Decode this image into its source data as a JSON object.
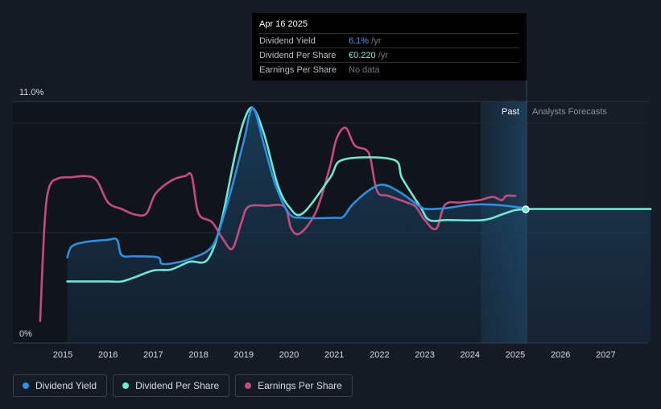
{
  "tooltip": {
    "date": "Apr 16 2025",
    "rows": [
      {
        "label": "Dividend Yield",
        "value": "6.1%",
        "unit": " /yr"
      },
      {
        "label": "Dividend Per Share",
        "value": "€0.220",
        "unit": " /yr"
      },
      {
        "label": "Earnings Per Share",
        "value": "No data",
        "unit": ""
      }
    ]
  },
  "regions": {
    "past_label": "Past",
    "forecast_label": "Analysts Forecasts"
  },
  "legend": [
    {
      "label": "Dividend Yield",
      "color": "#2f8ee0"
    },
    {
      "label": "Dividend Per Share",
      "color": "#6de8d4"
    },
    {
      "label": "Earnings Per Share",
      "color": "#c94a7f"
    }
  ],
  "chart_data": {
    "type": "line",
    "ylim": [
      0,
      11.0
    ],
    "y_tick_labels": [
      "11.0%",
      "0%"
    ],
    "x_tick_labels": [
      "2015",
      "2016",
      "2017",
      "2018",
      "2019",
      "2020",
      "2021",
      "2022",
      "2023",
      "2024",
      "2025",
      "2026",
      "2027"
    ],
    "past_end": 2025.3,
    "forecast_start": 2024.3,
    "grid": true,
    "series": [
      {
        "name": "Dividend Yield",
        "color": "#2f8ee0",
        "points": [
          [
            2015.1,
            3.9
          ],
          [
            2015.2,
            4.4
          ],
          [
            2015.5,
            4.6
          ],
          [
            2016.0,
            4.7
          ],
          [
            2016.2,
            4.7
          ],
          [
            2016.3,
            4.0
          ],
          [
            2016.6,
            3.95
          ],
          [
            2017.1,
            3.9
          ],
          [
            2017.2,
            3.6
          ],
          [
            2017.6,
            3.7
          ],
          [
            2017.9,
            3.9
          ],
          [
            2018.2,
            4.2
          ],
          [
            2018.4,
            4.8
          ],
          [
            2018.7,
            6.8
          ],
          [
            2019.0,
            9.2
          ],
          [
            2019.2,
            10.7
          ],
          [
            2019.45,
            9.0
          ],
          [
            2019.7,
            7.2
          ],
          [
            2020.0,
            5.9
          ],
          [
            2020.3,
            5.7
          ],
          [
            2021.0,
            5.7
          ],
          [
            2021.2,
            5.75
          ],
          [
            2021.4,
            6.3
          ],
          [
            2021.8,
            7.0
          ],
          [
            2022.1,
            7.2
          ],
          [
            2022.5,
            6.8
          ],
          [
            2022.9,
            6.2
          ],
          [
            2023.1,
            6.1
          ],
          [
            2023.5,
            6.15
          ],
          [
            2024.0,
            6.3
          ],
          [
            2024.5,
            6.3
          ],
          [
            2025.0,
            6.2
          ],
          [
            2025.3,
            6.1
          ]
        ]
      },
      {
        "name": "Dividend Per Share",
        "color": "#6de8d4",
        "points": [
          [
            2015.1,
            2.8
          ],
          [
            2016.0,
            2.8
          ],
          [
            2016.3,
            2.8
          ],
          [
            2016.6,
            3.0
          ],
          [
            2017.0,
            3.3
          ],
          [
            2017.4,
            3.35
          ],
          [
            2017.8,
            3.7
          ],
          [
            2018.2,
            3.8
          ],
          [
            2018.5,
            5.5
          ],
          [
            2018.8,
            8.5
          ],
          [
            2019.0,
            10.1
          ],
          [
            2019.2,
            10.7
          ],
          [
            2019.45,
            9.5
          ],
          [
            2019.75,
            7.2
          ],
          [
            2020.0,
            6.2
          ],
          [
            2020.3,
            5.9
          ],
          [
            2020.9,
            7.5
          ],
          [
            2021.2,
            8.35
          ],
          [
            2022.3,
            8.35
          ],
          [
            2022.5,
            7.5
          ],
          [
            2022.9,
            6.2
          ],
          [
            2023.1,
            5.6
          ],
          [
            2023.5,
            5.6
          ],
          [
            2024.3,
            5.6
          ],
          [
            2024.7,
            5.85
          ],
          [
            2025.0,
            6.05
          ],
          [
            2025.3,
            6.1
          ],
          [
            2026.0,
            6.1
          ],
          [
            2027.0,
            6.1
          ],
          [
            2027.99,
            6.1
          ]
        ]
      },
      {
        "name": "Earnings Per Share",
        "color": "#c94a7f",
        "points": [
          [
            2014.5,
            1.0
          ],
          [
            2014.6,
            5.5
          ],
          [
            2014.7,
            7.1
          ],
          [
            2014.9,
            7.5
          ],
          [
            2015.2,
            7.55
          ],
          [
            2015.5,
            7.6
          ],
          [
            2015.75,
            7.4
          ],
          [
            2016.0,
            6.4
          ],
          [
            2016.3,
            6.1
          ],
          [
            2016.6,
            5.85
          ],
          [
            2016.85,
            5.9
          ],
          [
            2017.05,
            6.8
          ],
          [
            2017.4,
            7.4
          ],
          [
            2017.7,
            7.6
          ],
          [
            2017.85,
            7.6
          ],
          [
            2018.0,
            5.9
          ],
          [
            2018.3,
            5.5
          ],
          [
            2018.55,
            4.7
          ],
          [
            2018.75,
            4.3
          ],
          [
            2018.95,
            5.5
          ],
          [
            2019.1,
            6.2
          ],
          [
            2019.5,
            6.25
          ],
          [
            2019.9,
            6.2
          ],
          [
            2020.05,
            5.2
          ],
          [
            2020.25,
            5.0
          ],
          [
            2020.6,
            6.0
          ],
          [
            2020.9,
            8.0
          ],
          [
            2021.05,
            9.3
          ],
          [
            2021.25,
            9.8
          ],
          [
            2021.45,
            9.0
          ],
          [
            2021.7,
            8.8
          ],
          [
            2021.8,
            8.4
          ],
          [
            2021.95,
            6.9
          ],
          [
            2022.2,
            6.7
          ],
          [
            2022.6,
            6.4
          ],
          [
            2022.8,
            6.2
          ],
          [
            2023.0,
            5.6
          ],
          [
            2023.25,
            5.2
          ],
          [
            2023.45,
            6.3
          ],
          [
            2023.8,
            6.4
          ],
          [
            2024.2,
            6.5
          ],
          [
            2024.5,
            6.65
          ],
          [
            2024.7,
            6.5
          ],
          [
            2024.8,
            6.7
          ],
          [
            2025.0,
            6.7
          ]
        ]
      }
    ]
  }
}
